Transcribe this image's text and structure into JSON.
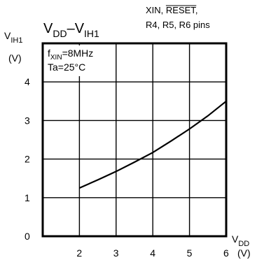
{
  "chart_data": {
    "type": "line",
    "title": "VDD–VIH1",
    "title_parts": {
      "main": "V",
      "sub1": "DD",
      "dash": "–",
      "main2": "V",
      "sub2": "IH1"
    },
    "pins_line1_prefix": "XIN, ",
    "pins_line1_overline": "RESET",
    "pins_line1_suffix": ",",
    "pins_line2": "R4, R5, R6 pins",
    "condition_freq_prefix": "f",
    "condition_freq_sub": "XIN",
    "condition_freq_value": "=8MHz",
    "condition_temp": "Ta=25°C",
    "ylabel_main": "V",
    "ylabel_sub": "IH1",
    "ylabel_unit": "(V)",
    "xlabel_main": "V",
    "xlabel_sub": "DD",
    "xlabel_unit": "(V)",
    "xlim": [
      1,
      6
    ],
    "ylim": [
      0,
      5
    ],
    "x_ticks": [
      "2",
      "3",
      "4",
      "5",
      "6"
    ],
    "y_ticks": [
      "0",
      "1",
      "2",
      "3",
      "4"
    ],
    "grid": true,
    "series": [
      {
        "x": [
          2,
          2.5,
          3,
          3.5,
          4,
          4.5,
          5,
          5.5,
          6
        ],
        "y": [
          1.25,
          1.46,
          1.68,
          1.92,
          2.17,
          2.47,
          2.78,
          3.12,
          3.5
        ]
      }
    ]
  }
}
